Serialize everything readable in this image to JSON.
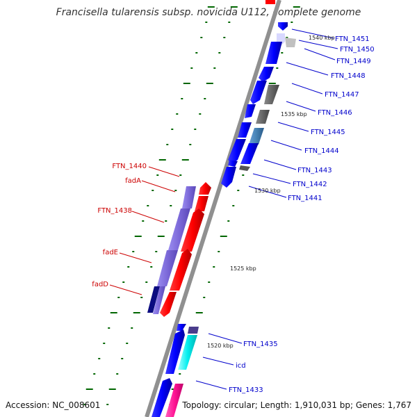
{
  "title": "Francisella tularensis subsp. novicida U112, complete genome",
  "footer": {
    "accession": "Accession: NC_008601",
    "topology": "Topology: circular; Length: 1,910,031 bp; Genes: 1,767"
  },
  "colors": {
    "backbone": "#909090",
    "forward_gene": "#ff0000",
    "reverse_gene": "#0000ff",
    "highlight_gene": "#7b68d8",
    "label_blue": "#0000cc",
    "label_red": "#cc0000",
    "tick": "#006600"
  },
  "scale_marks": [
    "1540 kbp",
    "1535 kbp",
    "1530 kbp",
    "1525 kbp",
    "1520 kbp"
  ],
  "right_labels": [
    "FTN_1451",
    "FTN_1450",
    "FTN_1449",
    "FTN_1448",
    "FTN_1447",
    "FTN_1446",
    "FTN_1445",
    "FTN_1444",
    "FTN_1443",
    "FTN_1442",
    "FTN_1441",
    "FTN_1435",
    "icd",
    "FTN_1433"
  ],
  "left_labels": [
    "FTN_1440",
    "fadA",
    "FTN_1438",
    "fadE",
    "fadD"
  ]
}
